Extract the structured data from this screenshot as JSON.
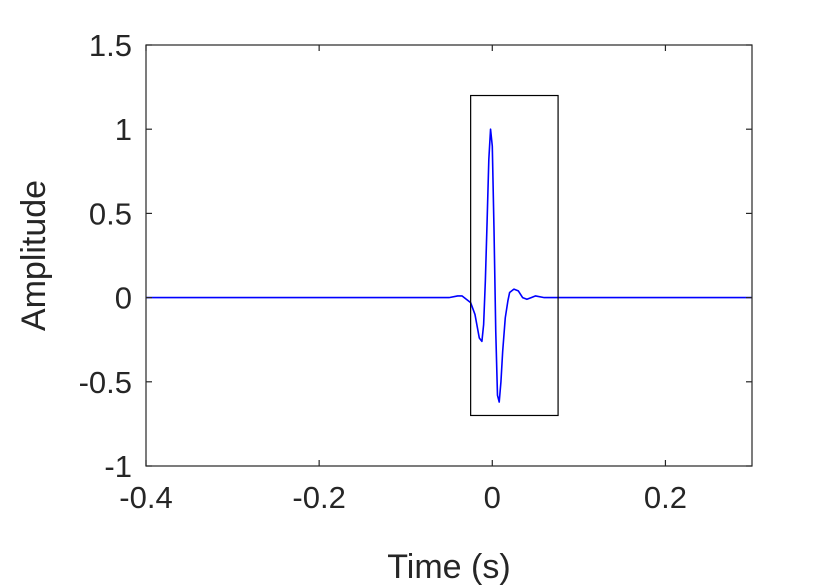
{
  "chart_data": {
    "type": "line",
    "title": "",
    "xlabel": "Time (s)",
    "ylabel": "Amplitude",
    "xlim": [
      -0.4,
      0.3
    ],
    "ylim": [
      -1,
      1.5
    ],
    "xticks": [
      -0.4,
      -0.2,
      0,
      0.2
    ],
    "xtick_labels": [
      "-0.4",
      "-0.2",
      "0",
      "0.2"
    ],
    "yticks": [
      -1,
      -0.5,
      0,
      0.5,
      1,
      1.5
    ],
    "ytick_labels": [
      "-1",
      "-0.5",
      "0",
      "0.5",
      "1",
      "1.5"
    ],
    "grid": false,
    "series": [
      {
        "color": "#0000ff",
        "x": [
          -0.4,
          -0.3,
          -0.2,
          -0.1,
          -0.05,
          -0.04,
          -0.035,
          -0.03,
          -0.025,
          -0.02,
          -0.015,
          -0.012,
          -0.01,
          -0.008,
          -0.006,
          -0.004,
          -0.002,
          0,
          0.002,
          0.004,
          0.006,
          0.008,
          0.01,
          0.012,
          0.015,
          0.018,
          0.02,
          0.025,
          0.03,
          0.035,
          0.04,
          0.045,
          0.05,
          0.06,
          0.07,
          0.08,
          0.1,
          0.2,
          0.3
        ],
        "y": [
          0,
          0,
          0,
          0,
          0,
          0.01,
          0.01,
          -0.01,
          -0.03,
          -0.1,
          -0.24,
          -0.26,
          -0.16,
          0.1,
          0.45,
          0.82,
          1.0,
          0.9,
          0.4,
          -0.2,
          -0.58,
          -0.62,
          -0.5,
          -0.32,
          -0.12,
          -0.02,
          0.03,
          0.05,
          0.04,
          0.0,
          -0.01,
          0.0,
          0.01,
          0.0,
          0.0,
          0.0,
          0.0,
          0.0,
          0.0
        ]
      }
    ],
    "annotations": [
      {
        "type": "rectangle",
        "x": [
          -0.025,
          0.076
        ],
        "y": [
          -0.7,
          1.2
        ],
        "color": "#000000"
      }
    ]
  }
}
